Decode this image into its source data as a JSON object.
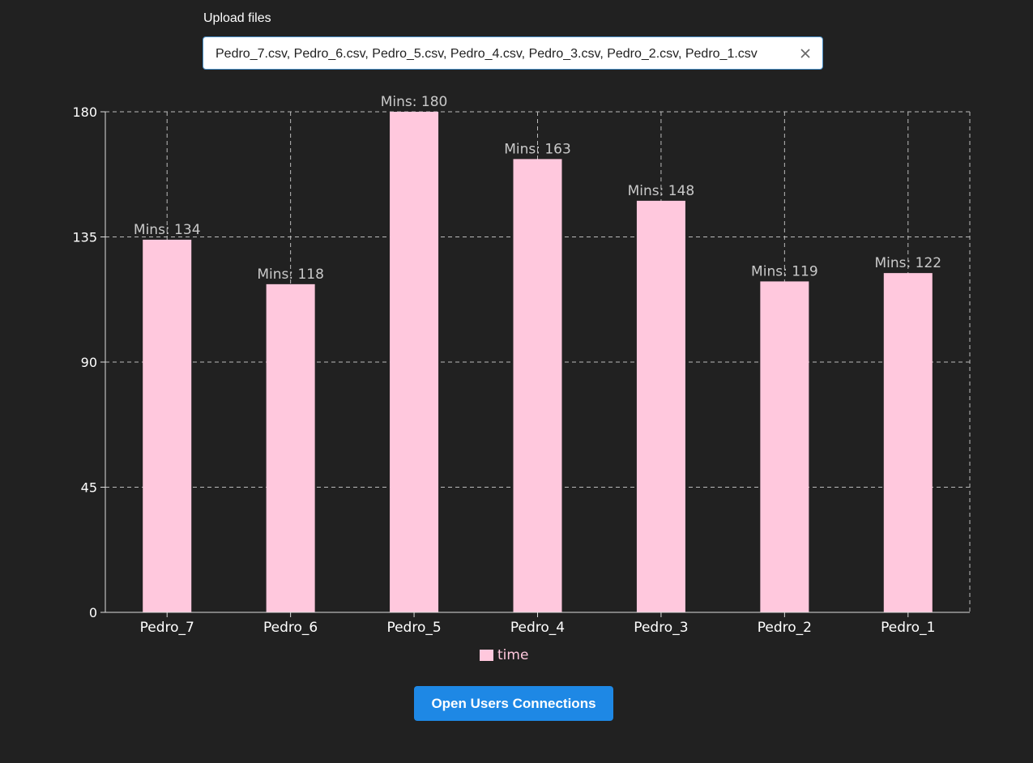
{
  "upload": {
    "label": "Upload files",
    "value": "Pedro_7.csv, Pedro_6.csv, Pedro_5.csv, Pedro_4.csv, Pedro_3.csv, Pedro_2.csv, Pedro_1.csv",
    "clear_icon": "close-icon"
  },
  "button": {
    "label": "Open Users Connections",
    "color": "#1e88e5"
  },
  "chart_data": {
    "type": "bar",
    "categories": [
      "Pedro_7",
      "Pedro_6",
      "Pedro_5",
      "Pedro_4",
      "Pedro_3",
      "Pedro_2",
      "Pedro_1"
    ],
    "series": [
      {
        "name": "time",
        "values": [
          134,
          118,
          180,
          163,
          148,
          119,
          122
        ],
        "color": "#ffc8dd"
      }
    ],
    "label_prefix": "Mins: ",
    "yticks": [
      0,
      45,
      90,
      135,
      180
    ],
    "ylim": [
      0,
      180
    ],
    "grid": true,
    "legend_position": "bottom"
  }
}
